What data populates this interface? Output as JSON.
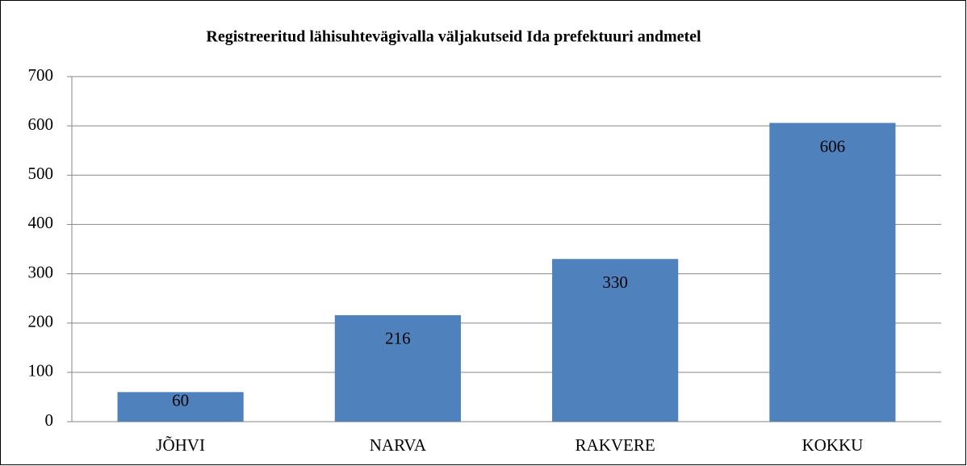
{
  "chart_data": {
    "type": "bar",
    "title": "Registreeritud lähisuhtevägivalla väljakutseid Ida prefektuuri andmetel",
    "categories": [
      "JÕHVI",
      "NARVA",
      "RAKVERE",
      "KOKKU"
    ],
    "values": [
      60,
      216,
      330,
      606
    ],
    "color": "#4f81bd",
    "ylim": [
      0,
      700
    ],
    "yticks": [
      0,
      100,
      200,
      300,
      400,
      500,
      600,
      700
    ],
    "grid": true
  }
}
